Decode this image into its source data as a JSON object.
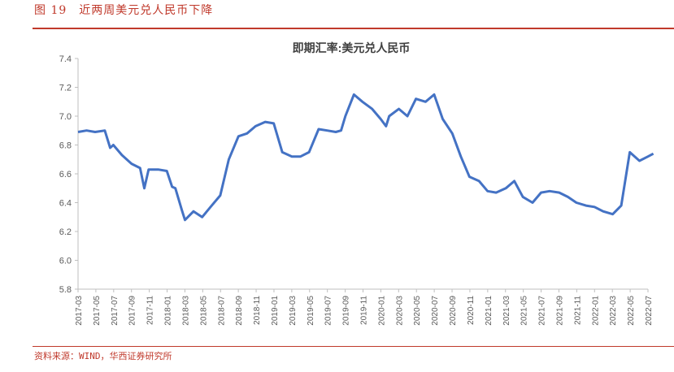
{
  "figure": {
    "title": "图 19　近两周美元兑人民币下降",
    "source": "资料来源：WIND，华西证券研究所"
  },
  "chart_data": {
    "type": "line",
    "title": "即期汇率:美元兑人民币",
    "ylim": [
      5.8,
      7.4
    ],
    "yticks": [
      "5.8",
      "6.0",
      "6.2",
      "6.4",
      "6.6",
      "6.8",
      "7.0",
      "7.2",
      "7.4"
    ],
    "categories": [
      "2017-03",
      "2017-05",
      "2017-07",
      "2017-09",
      "2017-11",
      "2018-01",
      "2018-03",
      "2018-05",
      "2018-07",
      "2018-09",
      "2018-11",
      "2019-01",
      "2019-03",
      "2019-05",
      "2019-07",
      "2019-09",
      "2019-11",
      "2020-01",
      "2020-03",
      "2020-05",
      "2020-07",
      "2020-09",
      "2020-11",
      "2021-01",
      "2021-03",
      "2021-05",
      "2021-07",
      "2021-09",
      "2021-11",
      "2022-01",
      "2022-03",
      "2022-05",
      "2022-07"
    ],
    "grid": false,
    "legend": "none",
    "line_color": "#4472c4",
    "series": [
      {
        "x": [
          2017.17,
          2017.25,
          2017.33,
          2017.42,
          2017.47,
          2017.5,
          2017.58,
          2017.67,
          2017.75,
          2017.79,
          2017.83,
          2017.92,
          2018.0,
          2018.05,
          2018.08,
          2018.14,
          2018.17,
          2018.25,
          2018.33,
          2018.42,
          2018.5,
          2018.58,
          2018.67,
          2018.75,
          2018.83,
          2018.92,
          2019.0,
          2019.08,
          2019.17,
          2019.25,
          2019.33,
          2019.42,
          2019.5,
          2019.58,
          2019.63,
          2019.67,
          2019.75,
          2019.83,
          2019.92,
          2020.0,
          2020.05,
          2020.08,
          2020.17,
          2020.25,
          2020.33,
          2020.42,
          2020.5,
          2020.58,
          2020.67,
          2020.75,
          2020.83,
          2020.92,
          2021.0,
          2021.08,
          2021.17,
          2021.25,
          2021.33,
          2021.42,
          2021.5,
          2021.58,
          2021.67,
          2021.75,
          2021.83,
          2021.92,
          2022.0,
          2022.08,
          2022.17,
          2022.25,
          2022.33,
          2022.42,
          2022.5,
          2022.55
        ],
        "y": [
          6.89,
          6.9,
          6.89,
          6.9,
          6.78,
          6.8,
          6.73,
          6.67,
          6.64,
          6.5,
          6.63,
          6.63,
          6.62,
          6.51,
          6.5,
          6.35,
          6.28,
          6.34,
          6.3,
          6.38,
          6.45,
          6.7,
          6.86,
          6.88,
          6.93,
          6.96,
          6.95,
          6.75,
          6.72,
          6.72,
          6.75,
          6.91,
          6.9,
          6.89,
          6.9,
          7.0,
          7.15,
          7.1,
          7.05,
          6.98,
          6.93,
          7.0,
          7.05,
          7.0,
          7.12,
          7.1,
          7.15,
          6.98,
          6.88,
          6.72,
          6.58,
          6.55,
          6.48,
          6.47,
          6.5,
          6.55,
          6.44,
          6.4,
          6.47,
          6.48,
          6.47,
          6.44,
          6.4,
          6.38,
          6.37,
          6.34,
          6.32,
          6.38,
          6.75,
          6.69,
          6.72,
          6.74
        ]
      }
    ]
  }
}
